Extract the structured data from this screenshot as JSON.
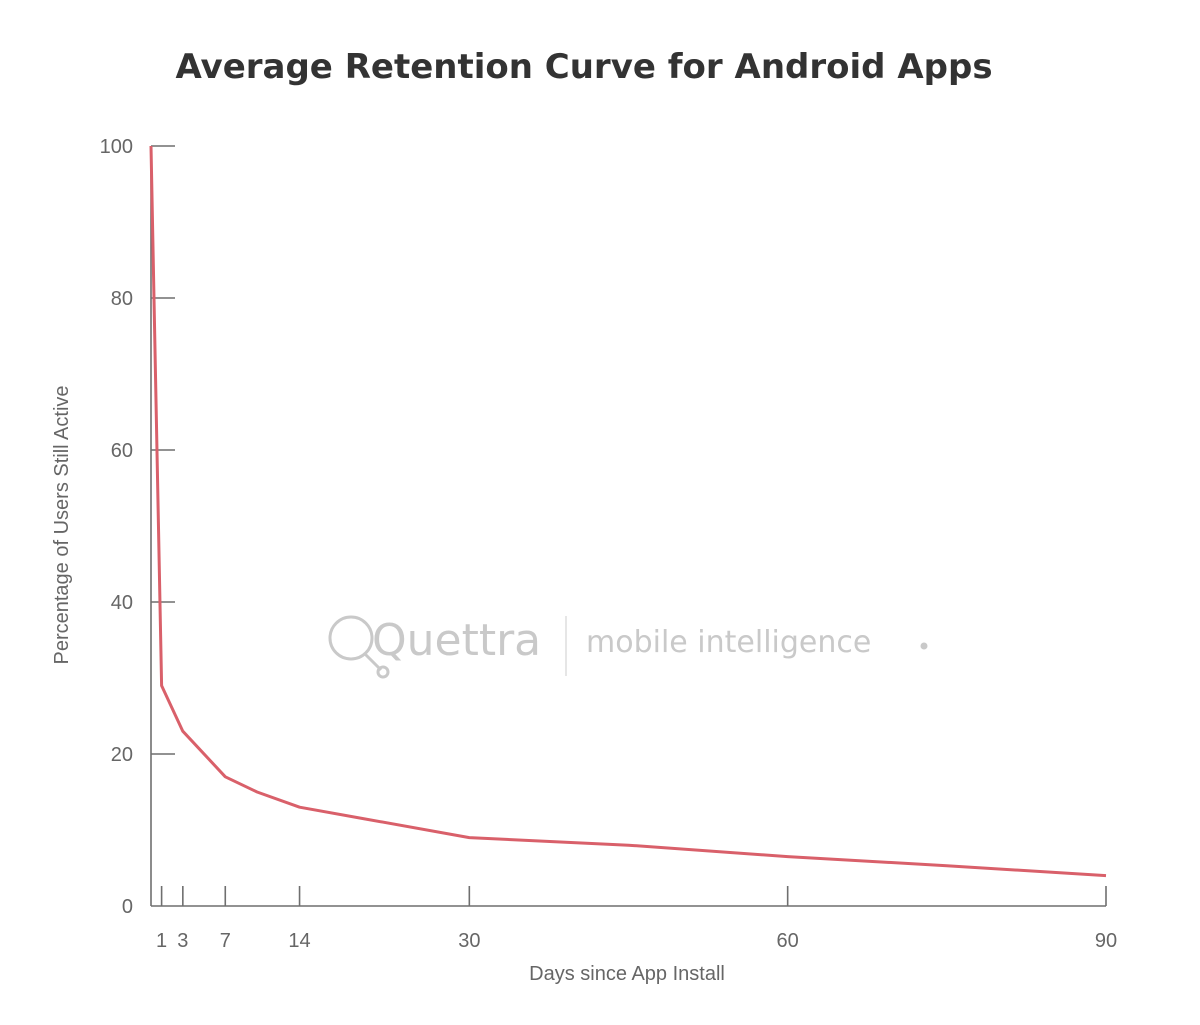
{
  "chart_data": {
    "type": "line",
    "title": "Average Retention Curve for Android Apps",
    "xlabel": "Days since App Install",
    "ylabel": "Percentage of Users Still Active",
    "xlim": [
      0,
      90
    ],
    "ylim": [
      0,
      100
    ],
    "x_ticks": [
      1,
      3,
      7,
      14,
      30,
      60,
      90
    ],
    "y_ticks": [
      0,
      20,
      40,
      60,
      80,
      100
    ],
    "grid": false,
    "series": [
      {
        "color": "#d9606a",
        "x": [
          0,
          1,
          3,
          7,
          10,
          14,
          20,
          30,
          45,
          60,
          75,
          90
        ],
        "y": [
          100,
          29,
          23,
          17,
          15,
          13,
          11.5,
          9,
          8,
          6.5,
          5.3,
          4
        ]
      }
    ]
  },
  "watermark": {
    "brand": "Quettra",
    "tagline": "mobile intelligence"
  }
}
